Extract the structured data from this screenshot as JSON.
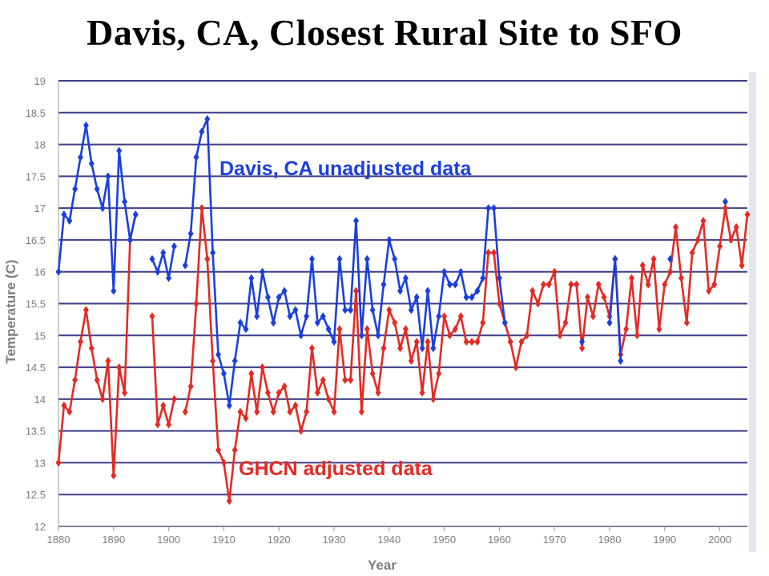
{
  "chart_data": {
    "type": "line",
    "title": "Davis, CA, Closest Rural Site to SFO",
    "xlabel": "Year",
    "ylabel": "Temperature (C)",
    "xlim": [
      1880,
      2005
    ],
    "ylim": [
      12,
      19
    ],
    "x_ticks": [
      1880,
      1890,
      1900,
      1910,
      1920,
      1930,
      1940,
      1950,
      1960,
      1970,
      1980,
      1990,
      2000
    ],
    "y_ticks": [
      12,
      12.5,
      13,
      13.5,
      14,
      14.5,
      15,
      15.5,
      16,
      16.5,
      17,
      17.5,
      18,
      18.5,
      19
    ],
    "grid": true,
    "series": [
      {
        "name": "Davis, CA unadjusted data",
        "color": "#1a3fe0",
        "points": [
          [
            1880,
            16.0
          ],
          [
            1881,
            16.9
          ],
          [
            1882,
            16.8
          ],
          [
            1883,
            17.3
          ],
          [
            1884,
            17.8
          ],
          [
            1885,
            18.3
          ],
          [
            1886,
            17.7
          ],
          [
            1887,
            17.3
          ],
          [
            1888,
            17.0
          ],
          [
            1889,
            17.5
          ],
          [
            1890,
            15.7
          ],
          [
            1891,
            17.9
          ],
          [
            1892,
            17.1
          ],
          [
            1893,
            16.5
          ],
          [
            1894,
            16.9
          ],
          null,
          [
            1897,
            16.2
          ],
          [
            1898,
            16.0
          ],
          [
            1899,
            16.3
          ],
          [
            1900,
            15.9
          ],
          [
            1901,
            16.4
          ],
          null,
          [
            1903,
            16.1
          ],
          [
            1904,
            16.6
          ],
          [
            1905,
            17.8
          ],
          [
            1906,
            18.2
          ],
          [
            1907,
            18.4
          ],
          [
            1908,
            16.3
          ],
          [
            1909,
            14.7
          ],
          [
            1910,
            14.4
          ],
          [
            1911,
            13.9
          ],
          [
            1912,
            14.6
          ],
          [
            1913,
            15.2
          ],
          [
            1914,
            15.1
          ],
          [
            1915,
            15.9
          ],
          [
            1916,
            15.3
          ],
          [
            1917,
            16.0
          ],
          [
            1918,
            15.6
          ],
          [
            1919,
            15.2
          ],
          [
            1920,
            15.6
          ],
          [
            1921,
            15.7
          ],
          [
            1922,
            15.3
          ],
          [
            1923,
            15.4
          ],
          [
            1924,
            15.0
          ],
          [
            1925,
            15.3
          ],
          [
            1926,
            16.2
          ],
          [
            1927,
            15.2
          ],
          [
            1928,
            15.3
          ],
          [
            1929,
            15.1
          ],
          [
            1930,
            14.9
          ],
          [
            1931,
            16.2
          ],
          [
            1932,
            15.4
          ],
          [
            1933,
            15.4
          ],
          [
            1934,
            16.8
          ],
          [
            1935,
            15.0
          ],
          [
            1936,
            16.2
          ],
          [
            1937,
            15.4
          ],
          [
            1938,
            15.0
          ],
          [
            1939,
            15.8
          ],
          [
            1940,
            16.5
          ],
          [
            1941,
            16.2
          ],
          [
            1942,
            15.7
          ],
          [
            1943,
            15.9
          ],
          [
            1944,
            15.4
          ],
          [
            1945,
            15.6
          ],
          [
            1946,
            14.8
          ],
          [
            1947,
            15.7
          ],
          [
            1948,
            14.8
          ],
          [
            1949,
            15.3
          ],
          [
            1950,
            16.0
          ],
          [
            1951,
            15.8
          ],
          [
            1952,
            15.8
          ],
          [
            1953,
            16.0
          ],
          [
            1954,
            15.6
          ],
          [
            1955,
            15.6
          ],
          [
            1956,
            15.7
          ],
          [
            1957,
            15.9
          ],
          [
            1958,
            17.0
          ],
          [
            1959,
            17.0
          ],
          [
            1960,
            15.9
          ],
          [
            1961,
            15.2
          ],
          null,
          [
            1975,
            14.9
          ],
          null,
          [
            1980,
            15.2
          ],
          [
            1981,
            16.2
          ],
          [
            1982,
            14.6
          ],
          null,
          [
            1991,
            16.2
          ],
          null,
          [
            2001,
            17.1
          ]
        ]
      },
      {
        "name": "GHCN adjusted data",
        "color": "#e42a22",
        "points": [
          [
            1880,
            13.0
          ],
          [
            1881,
            13.9
          ],
          [
            1882,
            13.8
          ],
          [
            1883,
            14.3
          ],
          [
            1884,
            14.9
          ],
          [
            1885,
            15.4
          ],
          [
            1886,
            14.8
          ],
          [
            1887,
            14.3
          ],
          [
            1888,
            14.0
          ],
          [
            1889,
            14.6
          ],
          [
            1890,
            12.8
          ],
          [
            1891,
            14.5
          ],
          [
            1892,
            14.1
          ],
          [
            1893,
            16.5
          ],
          [
            1894,
            16.9
          ],
          null,
          [
            1897,
            15.3
          ],
          [
            1898,
            13.6
          ],
          [
            1899,
            13.9
          ],
          [
            1900,
            13.6
          ],
          [
            1901,
            14.0
          ],
          null,
          [
            1903,
            13.8
          ],
          [
            1904,
            14.2
          ],
          [
            1905,
            15.5
          ],
          [
            1906,
            17.0
          ],
          [
            1907,
            16.2
          ],
          [
            1908,
            14.6
          ],
          [
            1909,
            13.2
          ],
          [
            1910,
            13.0
          ],
          [
            1911,
            12.4
          ],
          [
            1912,
            13.2
          ],
          [
            1913,
            13.8
          ],
          [
            1914,
            13.7
          ],
          [
            1915,
            14.4
          ],
          [
            1916,
            13.8
          ],
          [
            1917,
            14.5
          ],
          [
            1918,
            14.1
          ],
          [
            1919,
            13.8
          ],
          [
            1920,
            14.1
          ],
          [
            1921,
            14.2
          ],
          [
            1922,
            13.8
          ],
          [
            1923,
            13.9
          ],
          [
            1924,
            13.5
          ],
          [
            1925,
            13.8
          ],
          [
            1926,
            14.8
          ],
          [
            1927,
            14.1
          ],
          [
            1928,
            14.3
          ],
          [
            1929,
            14.0
          ],
          [
            1930,
            13.8
          ],
          [
            1931,
            15.1
          ],
          [
            1932,
            14.3
          ],
          [
            1933,
            14.3
          ],
          [
            1934,
            15.7
          ],
          [
            1935,
            13.8
          ],
          [
            1936,
            15.1
          ],
          [
            1937,
            14.4
          ],
          [
            1938,
            14.1
          ],
          [
            1939,
            14.8
          ],
          [
            1940,
            15.4
          ],
          [
            1941,
            15.2
          ],
          [
            1942,
            14.8
          ],
          [
            1943,
            15.1
          ],
          [
            1944,
            14.6
          ],
          [
            1945,
            14.9
          ],
          [
            1946,
            14.1
          ],
          [
            1947,
            14.9
          ],
          [
            1948,
            14.0
          ],
          [
            1949,
            14.4
          ],
          [
            1950,
            15.3
          ],
          [
            1951,
            15.0
          ],
          [
            1952,
            15.1
          ],
          [
            1953,
            15.3
          ],
          [
            1954,
            14.9
          ],
          [
            1955,
            14.9
          ],
          [
            1956,
            14.9
          ],
          [
            1957,
            15.2
          ],
          [
            1958,
            16.3
          ],
          [
            1959,
            16.3
          ],
          [
            1960,
            15.5
          ],
          [
            1961,
            15.2
          ],
          [
            1962,
            14.9
          ],
          [
            1963,
            14.5
          ],
          [
            1964,
            14.9
          ],
          [
            1965,
            15.0
          ],
          [
            1966,
            15.7
          ],
          [
            1967,
            15.5
          ],
          [
            1968,
            15.8
          ],
          [
            1969,
            15.8
          ],
          [
            1970,
            16.0
          ],
          [
            1971,
            15.0
          ],
          [
            1972,
            15.2
          ],
          [
            1973,
            15.8
          ],
          [
            1974,
            15.8
          ],
          [
            1975,
            14.8
          ],
          [
            1976,
            15.6
          ],
          [
            1977,
            15.3
          ],
          [
            1978,
            15.8
          ],
          [
            1979,
            15.6
          ],
          [
            1980,
            15.3
          ],
          [
            1981,
            16.2
          ],
          [
            1982,
            14.7
          ],
          [
            1983,
            15.1
          ],
          [
            1984,
            15.9
          ],
          [
            1985,
            15.0
          ],
          [
            1986,
            16.1
          ],
          [
            1987,
            15.8
          ],
          [
            1988,
            16.2
          ],
          [
            1989,
            15.1
          ],
          [
            1990,
            15.8
          ],
          [
            1991,
            16.0
          ],
          [
            1992,
            16.7
          ],
          [
            1993,
            15.9
          ],
          [
            1994,
            15.2
          ],
          [
            1995,
            16.3
          ],
          [
            1996,
            16.5
          ],
          [
            1997,
            16.8
          ],
          [
            1998,
            15.7
          ],
          [
            1999,
            15.8
          ],
          [
            2000,
            16.4
          ],
          [
            2001,
            17.0
          ],
          [
            2002,
            16.5
          ],
          [
            2003,
            16.7
          ],
          [
            2004,
            16.1
          ],
          [
            2005,
            16.9
          ]
        ]
      }
    ],
    "annotations": [
      "Davis, CA unadjusted data",
      "GHCN adjusted data"
    ]
  }
}
